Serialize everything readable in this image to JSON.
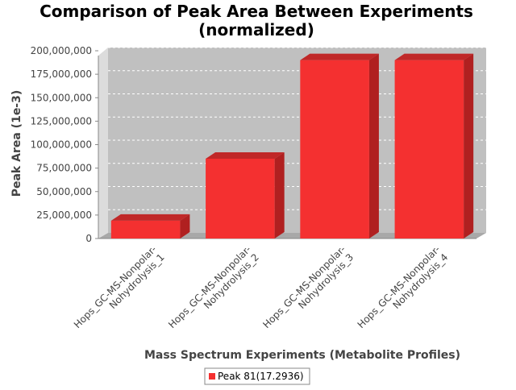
{
  "chart_data": {
    "type": "bar",
    "title_lines": [
      "Comparison of Peak Area Between Experiments",
      "(normalized)"
    ],
    "xlabel": "Mass Spectrum Experiments (Metabolite Profiles)",
    "ylabel": "Peak Area (1e-3)",
    "ylim": [
      0,
      200000000
    ],
    "yticks": [
      0,
      25000000,
      50000000,
      75000000,
      100000000,
      125000000,
      150000000,
      175000000,
      200000000
    ],
    "ytick_labels": [
      "0",
      "25,000,000",
      "50,000,000",
      "75,000,000",
      "100,000,000",
      "125,000,000",
      "150,000,000",
      "175,000,000",
      "200,000,000"
    ],
    "categories": [
      [
        "Hops_GC-MS-Nonpolar-",
        "Nohydrolysis_1"
      ],
      [
        "Hops_GC-MS-Nonpolar-",
        "Nohydrolysis_2"
      ],
      [
        "Hops_GC-MS-Nonpolar-",
        "Nohydrolysis_3"
      ],
      [
        "Hops_GC-MS-Nonpolar-",
        "Nohydrolysis_4"
      ]
    ],
    "series": [
      {
        "name": "Peak 81(17.2936)",
        "values": [
          19000000,
          85000000,
          190000000,
          190000000
        ]
      }
    ],
    "grid": true,
    "legend": "bottom-center",
    "colors": {
      "bar_front": "#f43030",
      "bar_top": "#c02828",
      "bar_side": "#b02020",
      "plot_bg": "#c0c0c0",
      "wall": "#dcdcdc",
      "floor": "#a8a8a8",
      "grid": "#ffffff"
    }
  }
}
